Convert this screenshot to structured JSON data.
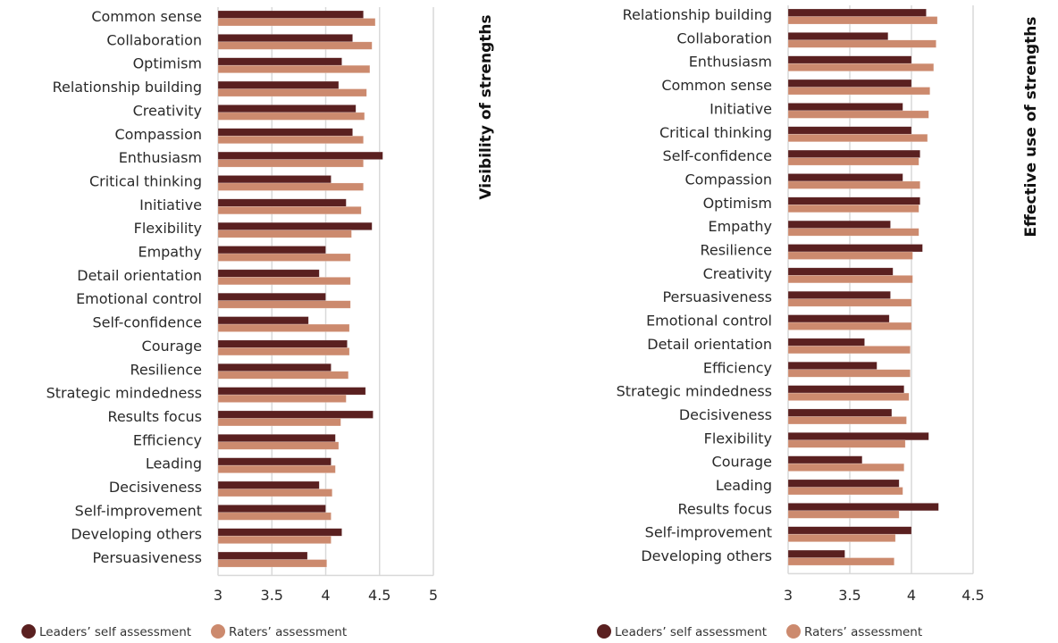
{
  "colors": {
    "self": "#5a2020",
    "raters": "#cc8a6e",
    "grid": "#d9d9d9"
  },
  "legend": [
    {
      "key": "self",
      "label": "Leaders’ self assessment"
    },
    {
      "key": "raters",
      "label": "Raters’ assessment"
    }
  ],
  "chart_data": [
    {
      "type": "bar",
      "orientation": "horizontal",
      "title": "Visibility of strengths",
      "xlim": [
        3,
        5
      ],
      "xticks": [
        "3",
        "3.5",
        "4",
        "4.5",
        "5"
      ],
      "tick_values": [
        3,
        3.5,
        4,
        4.5,
        5
      ],
      "grid": true,
      "legend_position": "bottom-left",
      "categories": [
        "Common sense",
        "Collaboration",
        "Optimism",
        "Relationship building",
        "Creativity",
        "Compassion",
        "Enthusiasm",
        "Critical thinking",
        "Initiative",
        "Flexibility",
        "Empathy",
        "Detail orientation",
        "Emotional control",
        "Self-confidence",
        "Courage",
        "Resilience",
        "Strategic mindedness",
        "Results focus",
        "Efficiency",
        "Leading",
        "Decisiveness",
        "Self-improvement",
        "Developing others",
        "Persuasiveness"
      ],
      "series": [
        {
          "name": "Leaders’ self assessment",
          "key": "self",
          "values": [
            4.35,
            4.25,
            4.15,
            4.12,
            4.28,
            4.25,
            4.53,
            4.05,
            4.19,
            4.43,
            4.0,
            3.94,
            4.0,
            3.84,
            4.2,
            4.05,
            4.37,
            4.44,
            4.09,
            4.05,
            3.94,
            4.0,
            4.15,
            3.83
          ]
        },
        {
          "name": "Raters’ assessment",
          "key": "raters",
          "values": [
            4.46,
            4.43,
            4.41,
            4.38,
            4.36,
            4.35,
            4.35,
            4.35,
            4.33,
            4.24,
            4.23,
            4.23,
            4.23,
            4.22,
            4.22,
            4.21,
            4.19,
            4.14,
            4.12,
            4.09,
            4.06,
            4.05,
            4.05,
            4.01
          ]
        }
      ]
    },
    {
      "type": "bar",
      "orientation": "horizontal",
      "title": "Effective use of strengths",
      "xlim": [
        3,
        4.5
      ],
      "xticks": [
        "3",
        "3.5",
        "4",
        "4.5"
      ],
      "tick_values": [
        3,
        3.5,
        4,
        4.5
      ],
      "grid": true,
      "legend_position": "bottom-left",
      "categories": [
        "Relationship building",
        "Collaboration",
        "Enthusiasm",
        "Common sense",
        "Initiative",
        "Critical thinking",
        "Self-confidence",
        "Compassion",
        "Optimism",
        "Empathy",
        "Resilience",
        "Creativity",
        "Persuasiveness",
        "Emotional control",
        "Detail orientation",
        "Efficiency",
        "Strategic mindedness",
        "Decisiveness",
        "Flexibility",
        "Courage",
        "Leading",
        "Results focus",
        "Self-improvement",
        "Developing others"
      ],
      "series": [
        {
          "name": "Leaders’ self assessment",
          "key": "self",
          "values": [
            4.12,
            3.81,
            4.0,
            4.0,
            3.93,
            4.0,
            4.07,
            3.93,
            4.07,
            3.83,
            4.09,
            3.85,
            3.83,
            3.82,
            3.62,
            3.72,
            3.94,
            3.84,
            4.14,
            3.6,
            3.9,
            4.22,
            4.0,
            3.46
          ]
        },
        {
          "name": "Raters’ assessment",
          "key": "raters",
          "values": [
            4.21,
            4.2,
            4.18,
            4.15,
            4.14,
            4.13,
            4.06,
            4.07,
            4.06,
            4.06,
            4.01,
            4.01,
            4.0,
            4.0,
            3.99,
            3.99,
            3.98,
            3.96,
            3.95,
            3.94,
            3.93,
            3.9,
            3.87,
            3.86
          ]
        }
      ]
    }
  ]
}
